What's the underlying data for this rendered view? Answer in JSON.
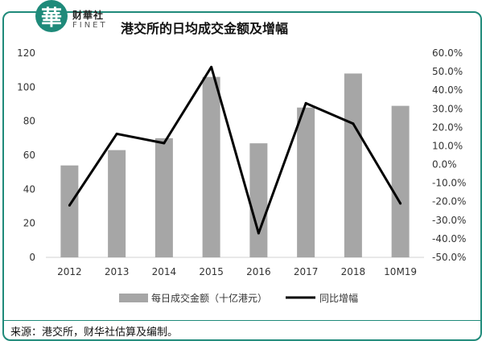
{
  "header": {
    "logo_char": "華",
    "brand_cn": "财華社",
    "brand_en": "FINET",
    "title": "港交所的日均成交金额及增幅"
  },
  "source_note": "来源：港交所，财华社估算及编制。",
  "chart_data": {
    "type": "bar+line",
    "title": "港交所的日均成交金额及增幅",
    "categories": [
      "2012",
      "2013",
      "2014",
      "2015",
      "2016",
      "2017",
      "2018",
      "10M19"
    ],
    "series": [
      {
        "name": "每日成交金额（十亿港元）",
        "type": "bar",
        "axis": "left",
        "color": "#a6a6a6",
        "values": [
          54,
          63,
          70,
          106,
          67,
          88,
          108,
          89
        ]
      },
      {
        "name": "同比增幅",
        "type": "line",
        "axis": "right",
        "color": "#000000",
        "values": [
          -22.0,
          16.5,
          11.5,
          52.5,
          -37.0,
          33.0,
          22.0,
          -21.0
        ]
      }
    ],
    "left_axis": {
      "ylim": [
        0,
        120
      ],
      "ticks": [
        "0",
        "20",
        "40",
        "60",
        "80",
        "100",
        "120"
      ]
    },
    "right_axis": {
      "ylim": [
        -50,
        60
      ],
      "ticks": [
        "-50.0%",
        "-40.0%",
        "-30.0%",
        "-20.0%",
        "-10.0%",
        "0.0%",
        "10.0%",
        "20.0%",
        "30.0%",
        "40.0%",
        "50.0%",
        "60.0%"
      ]
    },
    "grid": false,
    "legend_position": "bottom"
  }
}
